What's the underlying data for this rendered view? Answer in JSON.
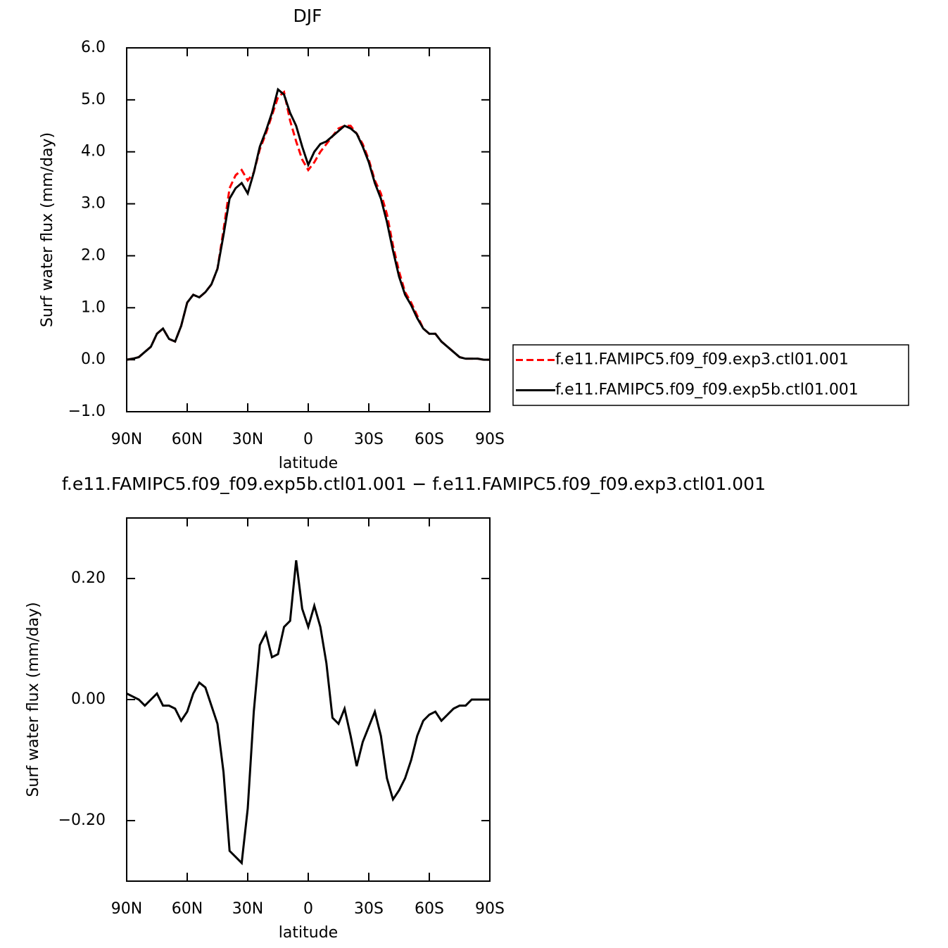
{
  "chart_data": [
    {
      "type": "line",
      "title": "DJF",
      "x_label": "latitude",
      "y_label": "Surf water flux (mm/day)",
      "x": [
        90,
        87,
        84,
        81,
        78,
        75,
        72,
        69,
        66,
        63,
        60,
        57,
        54,
        51,
        48,
        45,
        42,
        39,
        36,
        33,
        30,
        27,
        24,
        21,
        18,
        15,
        12,
        9,
        6,
        3,
        0,
        -3,
        -6,
        -9,
        -12,
        -15,
        -18,
        -21,
        -24,
        -27,
        -30,
        -33,
        -36,
        -39,
        -42,
        -45,
        -48,
        -51,
        -54,
        -57,
        -60,
        -63,
        -66,
        -69,
        -72,
        -75,
        -78,
        -81,
        -84,
        -87,
        -90
      ],
      "series": [
        {
          "name": "f.e11.FAMIPC5.f09_f09.exp3.ctl01.001",
          "color": "#ff0000",
          "dash": true,
          "values": [
            0.0,
            0.02,
            0.05,
            0.15,
            0.25,
            0.5,
            0.6,
            0.4,
            0.35,
            0.65,
            1.1,
            1.25,
            1.2,
            1.3,
            1.45,
            1.75,
            2.5,
            3.3,
            3.55,
            3.65,
            3.45,
            3.6,
            4.05,
            4.35,
            4.7,
            5.05,
            5.15,
            4.6,
            4.2,
            3.85,
            3.65,
            3.8,
            4.0,
            4.15,
            4.3,
            4.45,
            4.5,
            4.5,
            4.35,
            4.15,
            3.85,
            3.45,
            3.2,
            2.8,
            2.2,
            1.7,
            1.3,
            1.1,
            0.85,
            0.6,
            0.5,
            0.5,
            0.35,
            0.25,
            0.15,
            0.05,
            0.02,
            0.02,
            0.02,
            0.0,
            0.0
          ]
        },
        {
          "name": "f.e11.FAMIPC5.f09_f09.exp5b.ctl01.001",
          "color": "#000000",
          "dash": false,
          "values": [
            0.0,
            0.02,
            0.05,
            0.15,
            0.25,
            0.5,
            0.6,
            0.4,
            0.35,
            0.65,
            1.1,
            1.25,
            1.2,
            1.3,
            1.45,
            1.75,
            2.4,
            3.1,
            3.3,
            3.4,
            3.2,
            3.6,
            4.1,
            4.4,
            4.75,
            5.2,
            5.1,
            4.75,
            4.5,
            4.1,
            3.75,
            4.0,
            4.15,
            4.2,
            4.3,
            4.4,
            4.5,
            4.45,
            4.35,
            4.1,
            3.8,
            3.4,
            3.1,
            2.65,
            2.1,
            1.6,
            1.25,
            1.05,
            0.8,
            0.6,
            0.5,
            0.5,
            0.35,
            0.25,
            0.15,
            0.05,
            0.02,
            0.02,
            0.02,
            0.0,
            0.0
          ]
        }
      ],
      "xlim": [
        90,
        -90
      ],
      "xticks": [
        {
          "value": 90,
          "label": "90N"
        },
        {
          "value": 60,
          "label": "60N"
        },
        {
          "value": 30,
          "label": "30N"
        },
        0,
        {
          "value": -30,
          "label": "30S"
        },
        {
          "value": -60,
          "label": "60S"
        },
        {
          "value": -90,
          "label": "90S"
        }
      ],
      "ylim": [
        -1,
        6
      ],
      "yticks": [
        {
          "value": 6,
          "label": "6.0"
        },
        {
          "value": 5,
          "label": "5.0"
        },
        {
          "value": 4,
          "label": "4.0"
        },
        {
          "value": 3,
          "label": "3.0"
        },
        {
          "value": 2,
          "label": "2.0"
        },
        {
          "value": 1,
          "label": "1.0"
        },
        {
          "value": 0,
          "label": "0.0"
        },
        {
          "value": -1,
          "label": "−1.0"
        }
      ],
      "legend": "right"
    },
    {
      "type": "line",
      "title": "f.e11.FAMIPC5.f09_f09.exp5b.ctl01.001 − f.e11.FAMIPC5.f09_f09.exp3.ctl01.001",
      "x_label": "latitude",
      "y_label": "Surf water flux (mm/day)",
      "x": [
        90,
        87,
        84,
        81,
        78,
        75,
        72,
        69,
        66,
        63,
        60,
        57,
        54,
        51,
        48,
        45,
        42,
        39,
        36,
        33,
        30,
        27,
        24,
        21,
        18,
        15,
        12,
        9,
        6,
        3,
        0,
        -3,
        -6,
        -9,
        -12,
        -15,
        -18,
        -21,
        -24,
        -27,
        -30,
        -33,
        -36,
        -39,
        -42,
        -45,
        -48,
        -51,
        -54,
        -57,
        -60,
        -63,
        -66,
        -69,
        -72,
        -75,
        -78,
        -81,
        -84,
        -87,
        -90
      ],
      "series": [
        {
          "color": "#000000",
          "dash": false,
          "values": [
            0.01,
            0.005,
            0.0,
            -0.01,
            0.0,
            0.01,
            -0.01,
            -0.01,
            -0.015,
            -0.035,
            -0.02,
            0.01,
            0.028,
            0.02,
            -0.01,
            -0.04,
            -0.12,
            -0.25,
            -0.26,
            -0.27,
            -0.18,
            -0.02,
            0.09,
            0.11,
            0.07,
            0.075,
            0.12,
            0.13,
            0.23,
            0.15,
            0.12,
            0.155,
            0.12,
            0.06,
            -0.03,
            -0.04,
            -0.015,
            -0.06,
            -0.11,
            -0.07,
            -0.045,
            -0.02,
            -0.06,
            -0.13,
            -0.165,
            -0.15,
            -0.13,
            -0.1,
            -0.06,
            -0.035,
            -0.025,
            -0.02,
            -0.035,
            -0.025,
            -0.015,
            -0.01,
            -0.01,
            0.0,
            0.0,
            0.0,
            0.0
          ]
        }
      ],
      "xlim": [
        90,
        -90
      ],
      "xticks": [
        {
          "value": 90,
          "label": "90N"
        },
        {
          "value": 60,
          "label": "60N"
        },
        {
          "value": 30,
          "label": "30N"
        },
        0,
        {
          "value": -30,
          "label": "30S"
        },
        {
          "value": -60,
          "label": "60S"
        },
        {
          "value": -90,
          "label": "90S"
        }
      ],
      "ylim": [
        -0.3,
        0.3
      ],
      "yticks": [
        {
          "value": 0.2,
          "label": "0.20"
        },
        {
          "value": 0,
          "label": "0.00"
        },
        {
          "value": -0.2,
          "label": "−0.20"
        }
      ]
    }
  ]
}
